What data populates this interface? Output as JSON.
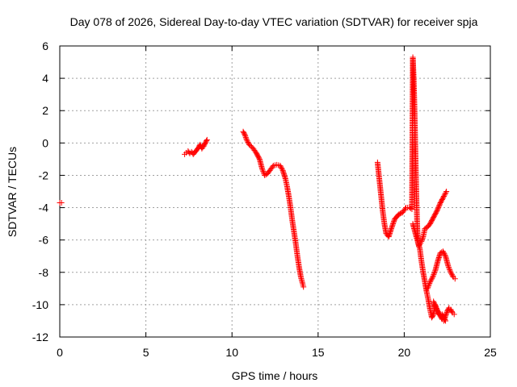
{
  "chart_data": {
    "type": "scatter",
    "title": "Day 078 of 2026, Sidereal Day-to-day VTEC variation (SDTVAR) for receiver spja",
    "xlabel": "GPS time / hours",
    "ylabel": "SDTVAR / TECUs",
    "xlim": [
      0,
      25
    ],
    "ylim": [
      -12,
      6
    ],
    "xticks": [
      0,
      5,
      10,
      15,
      20,
      25
    ],
    "yticks": [
      -12,
      -10,
      -8,
      -6,
      -4,
      -2,
      0,
      2,
      4,
      6
    ],
    "grid": true,
    "marker": "+",
    "color": "#ff0000",
    "series": [
      {
        "x": [
          0.0,
          0.1
        ],
        "y": [
          -3.7,
          -3.7
        ]
      },
      {
        "x": [
          7.25,
          7.35,
          7.45,
          7.55,
          7.65,
          7.75,
          8.05,
          8.15,
          8.25,
          8.35,
          8.45,
          8.55
        ],
        "y": [
          -0.7,
          -0.6,
          -0.5,
          -0.65,
          -0.55,
          -0.7,
          -0.3,
          -0.1,
          -0.35,
          -0.2,
          0.0,
          0.2
        ]
      },
      {
        "x": [
          10.65,
          10.75,
          10.85,
          11.0,
          11.2,
          11.4,
          11.6,
          11.75,
          11.9,
          12.05,
          12.2,
          12.4,
          12.6,
          12.8,
          12.95,
          13.1,
          13.2,
          13.3,
          13.4,
          13.5,
          13.6,
          13.7,
          13.8,
          13.9,
          14.0,
          14.1,
          14.15
        ],
        "y": [
          0.7,
          0.5,
          0.2,
          -0.1,
          -0.3,
          -0.6,
          -1.0,
          -1.6,
          -2.0,
          -1.9,
          -1.7,
          -1.4,
          -1.35,
          -1.4,
          -1.7,
          -2.2,
          -2.7,
          -3.3,
          -4.0,
          -4.8,
          -5.5,
          -6.2,
          -7.0,
          -7.7,
          -8.3,
          -8.7,
          -8.9
        ]
      },
      {
        "x": [
          18.45,
          18.55,
          18.65,
          18.75,
          18.85,
          18.95,
          19.1,
          19.25,
          19.45,
          19.7,
          19.9,
          20.1,
          20.3,
          20.45,
          20.5,
          20.55,
          20.6,
          20.65,
          20.7,
          20.75,
          20.8,
          20.85,
          20.9,
          20.95,
          21.0,
          21.1,
          21.2,
          21.35,
          21.5,
          21.7,
          21.9,
          22.1,
          22.3,
          22.45
        ],
        "y": [
          -1.2,
          -2.2,
          -3.2,
          -4.2,
          -5.0,
          -5.6,
          -5.8,
          -5.3,
          -4.7,
          -4.4,
          -4.3,
          -4.0,
          -4.0,
          -4.1,
          5.3,
          4.0,
          2.0,
          -0.5,
          -3.0,
          -5.0,
          -6.2,
          -6.4,
          -6.3,
          -6.2,
          -6.1,
          -5.8,
          -5.3,
          -5.2,
          -5.0,
          -4.6,
          -4.2,
          -3.7,
          -3.3,
          -3.0
        ]
      },
      {
        "x": [
          20.5,
          20.7,
          20.9,
          21.0,
          21.1,
          21.2,
          21.3,
          21.4,
          21.5,
          21.6,
          21.7,
          21.8,
          21.9,
          22.0,
          22.1,
          22.2,
          22.3,
          22.4,
          22.5,
          22.6,
          22.7,
          22.8,
          22.9
        ],
        "y": [
          -5.0,
          -5.8,
          -6.5,
          -7.3,
          -8.0,
          -8.6,
          -9.2,
          -9.7,
          -10.3,
          -10.8,
          -10.6,
          -10.0,
          -10.3,
          -10.6,
          -10.7,
          -10.9,
          -11.0,
          -10.7,
          -10.4,
          -10.2,
          -10.3,
          -10.5,
          -10.6
        ]
      },
      {
        "x": [
          21.35,
          21.5,
          21.65,
          21.8,
          21.95,
          22.1,
          22.25,
          22.4,
          22.55,
          22.7,
          22.85,
          22.95
        ],
        "y": [
          -9.0,
          -8.6,
          -8.3,
          -7.9,
          -7.3,
          -6.8,
          -6.7,
          -7.0,
          -7.6,
          -8.0,
          -8.3,
          -8.4
        ]
      },
      {
        "x": [
          21.7,
          21.8,
          21.9,
          22.0,
          22.1,
          22.2,
          22.3,
          22.4
        ],
        "y": [
          -9.8,
          -10.1,
          -10.3,
          -10.5,
          -10.7,
          -10.6,
          -10.8,
          -11.0
        ]
      }
    ]
  }
}
